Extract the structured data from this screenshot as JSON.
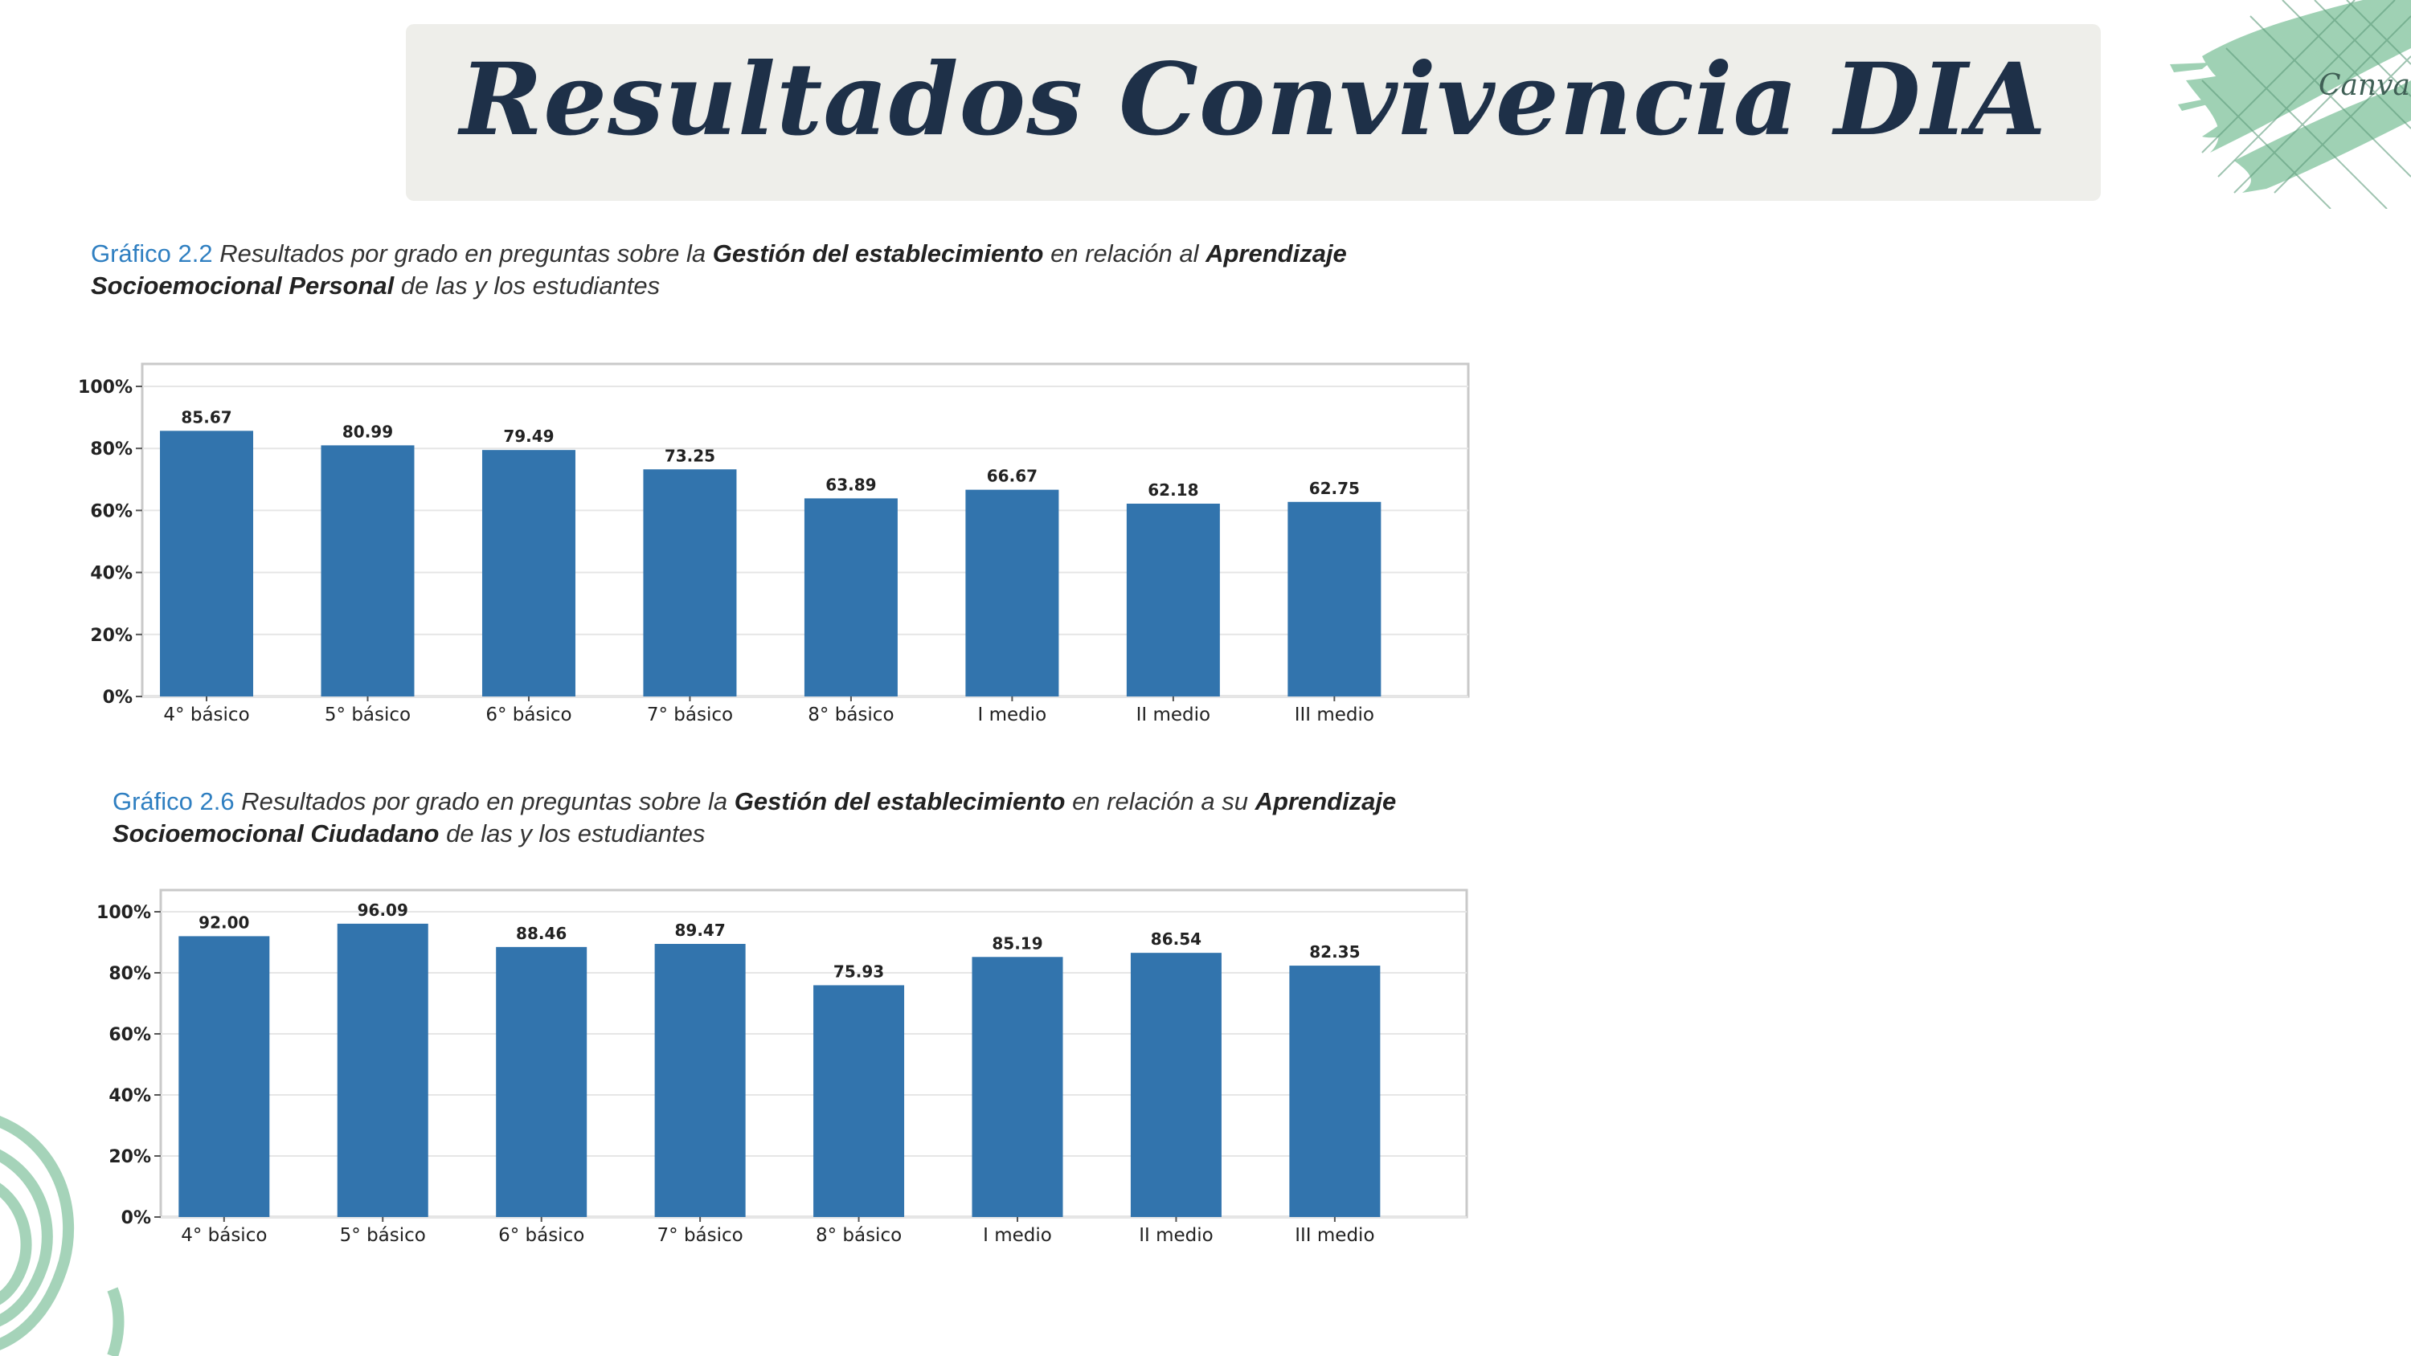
{
  "title": "Resultados Convivencia DIA",
  "watermark": "Canva",
  "colors": {
    "bar": "#3274ad",
    "title": "#1e3048",
    "caption_num": "#2f7fc1",
    "deco": "#8fc9a8"
  },
  "chart1_caption": {
    "num": "Gráfico 2.2",
    "t1": " Resultados por grado en preguntas sobre la ",
    "b1": "Gestión del establecimiento",
    "t2": " en relación al ",
    "b2": "Aprendizaje",
    "b3": "Socioemocional Personal",
    "t3": " de las y los estudiantes"
  },
  "chart2_caption": {
    "num": "Gráfico 2.6",
    "t1": " Resultados por grado en preguntas sobre la ",
    "b1": "Gestión del establecimiento",
    "t2": " en relación a su ",
    "b2": "Aprendizaje",
    "b3": "Socioemocional Ciudadano",
    "t3": " de las y los estudiantes"
  },
  "chart_data": [
    {
      "type": "bar",
      "categories": [
        "4° básico",
        "5° básico",
        "6° básico",
        "7° básico",
        "8° básico",
        "I medio",
        "II medio",
        "III medio"
      ],
      "values": [
        85.67,
        80.99,
        79.49,
        73.25,
        63.89,
        66.67,
        62.18,
        62.75
      ],
      "value_labels": [
        "85.67",
        "80.99",
        "79.49",
        "73.25",
        "63.89",
        "66.67",
        "62.18",
        "62.75"
      ],
      "yticks": [
        "0%",
        "20%",
        "40%",
        "60%",
        "80%",
        "100%"
      ],
      "ylim": [
        0,
        100
      ],
      "grid": true
    },
    {
      "type": "bar",
      "categories": [
        "4° básico",
        "5° básico",
        "6° básico",
        "7° básico",
        "8° básico",
        "I medio",
        "II medio",
        "III medio"
      ],
      "values": [
        92.0,
        96.09,
        88.46,
        89.47,
        75.93,
        85.19,
        86.54,
        82.35
      ],
      "value_labels": [
        "92.00",
        "96.09",
        "88.46",
        "89.47",
        "75.93",
        "85.19",
        "86.54",
        "82.35"
      ],
      "yticks": [
        "0%",
        "20%",
        "40%",
        "60%",
        "80%",
        "100%"
      ],
      "ylim": [
        0,
        100
      ],
      "grid": true
    }
  ]
}
